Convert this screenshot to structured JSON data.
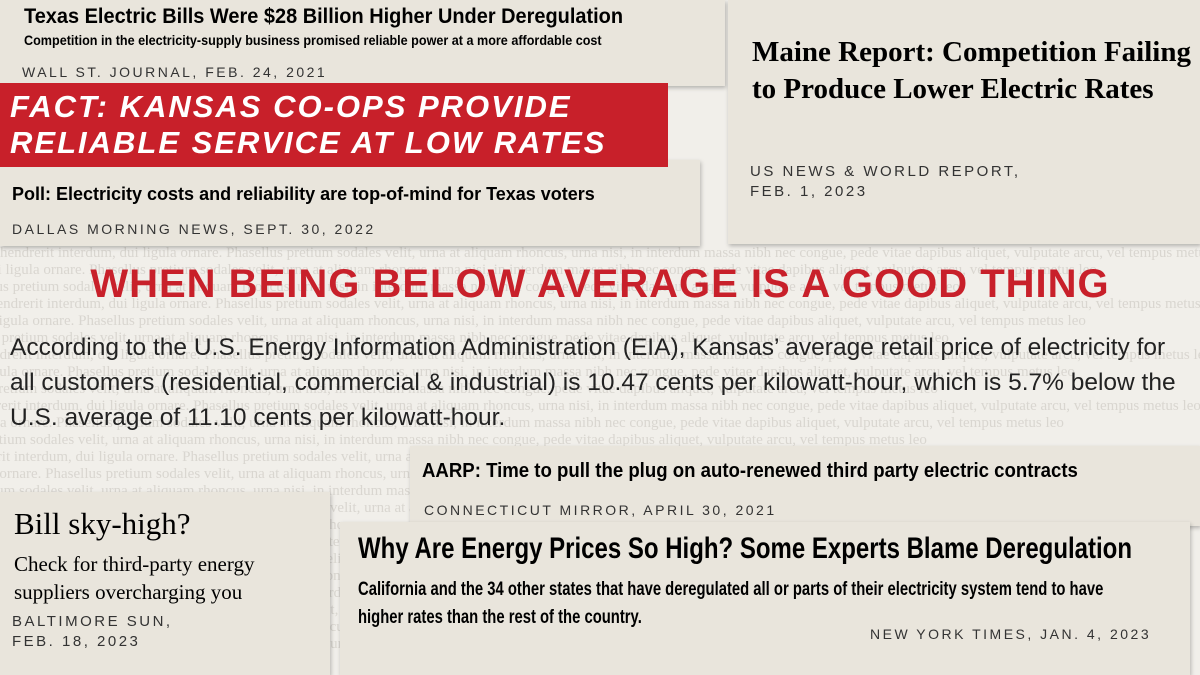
{
  "clippings": [
    {
      "headline": "Texas Electric Bills Were $28 Billion Higher Under Deregulation",
      "subhead": "Competition in the electricity-supply business promised reliable power at a more affordable cost",
      "source": "WALL ST. JOURNAL, FEB. 24, 2021"
    },
    {
      "headline": "FACT: KANSAS CO-OPS PROVIDE RELIABLE SERVICE AT LOW RATES"
    },
    {
      "headline": "Poll: Electricity costs and reliability are top-of-mind for Texas voters",
      "source": "DALLAS MORNING NEWS, SEPT. 30, 2022"
    },
    {
      "headline": "Maine Report: Competition Failing to Produce Lower Electric Rates",
      "source": "US NEWS & WORLD REPORT, FEB. 1, 2023"
    },
    {
      "headline": "AARP: Time to pull the plug on auto-renewed third party electric contracts",
      "source": "CONNECTICUT MIRROR, APRIL 30, 2021"
    },
    {
      "headline": "Bill sky-high?",
      "subhead": "Check for third-party energy suppliers overcharging you",
      "source": "BALTIMORE SUN, FEB. 18, 2023"
    },
    {
      "headline": "Why Are Energy Prices So High? Some Experts Blame Deregulation",
      "subhead": "California and the 34 other states that have deregulated all or parts of their electricity system tend to have higher rates than the rest of the country.",
      "source": "NEW YORK TIMES, JAN. 4, 2023"
    }
  ],
  "banner": {
    "title": "WHEN BEING BELOW AVERAGE IS A GOOD THING",
    "body": "According to the U.S. Energy Information Administration (EIA), Kansas’ average retail price of electricity for all customers (residential, commercial & industrial) is 10.47 cents per kilowatt-hour, which is 5.7% below the U.S. average of 11.10 cents per kilowatt-hour."
  },
  "background_text": "hendrerit interdum, dui ligula ornare. Phasellus pretium sodales velit, urna at aliquam rhoncus, urna nisi, in interdum massa nibh nec congue, pede vitae dapibus aliquet, vulputate arcu, vel tempus metus leo"
}
